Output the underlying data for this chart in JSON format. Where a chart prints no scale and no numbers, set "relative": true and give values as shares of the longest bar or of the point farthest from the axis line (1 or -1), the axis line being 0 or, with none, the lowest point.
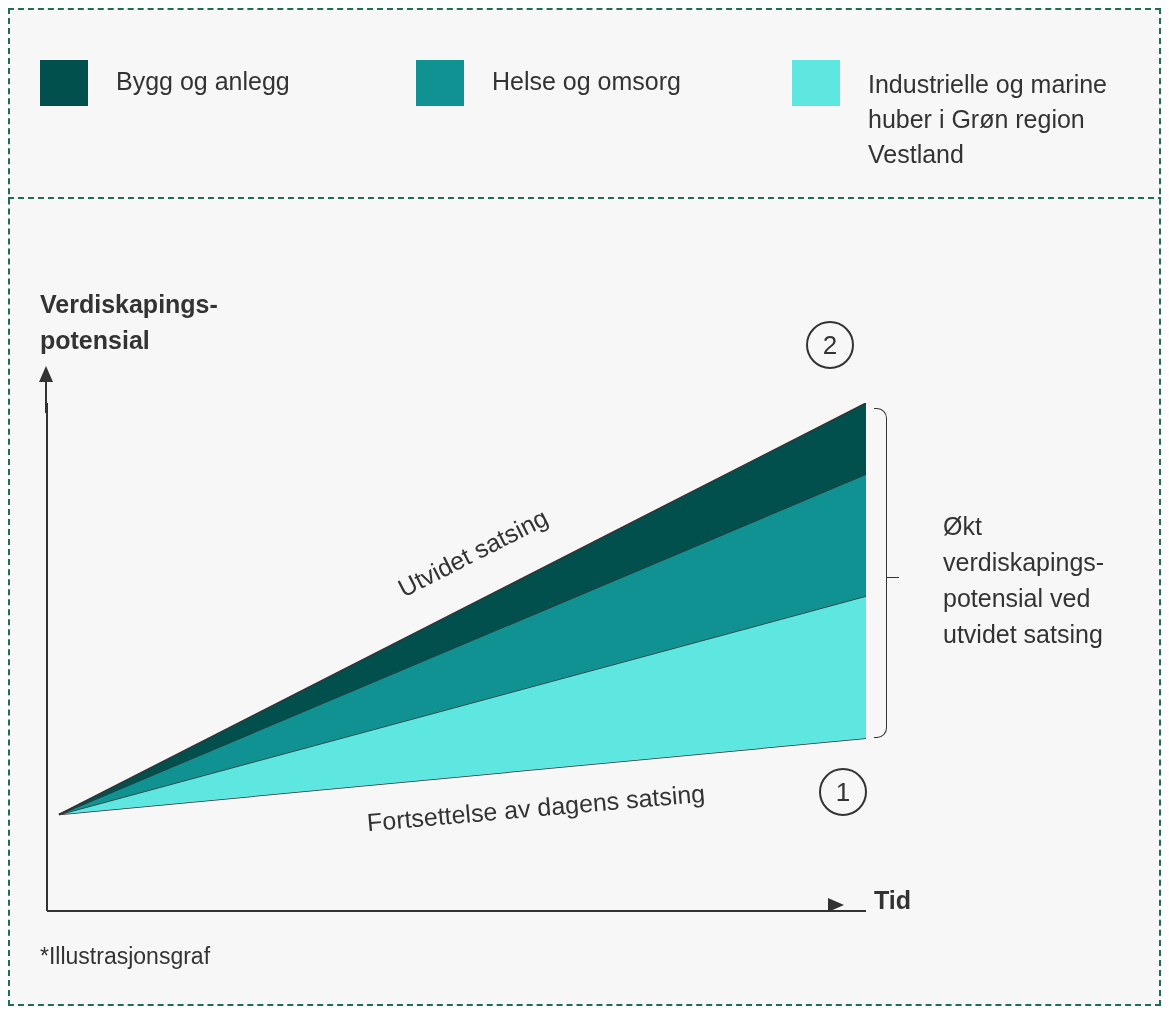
{
  "chart_data": {
    "type": "area",
    "stacked": true,
    "relative": true,
    "legend": "top",
    "xlabel": "Tid",
    "ylabel": "Verdiskapings-potensial",
    "categories": [
      null,
      null
    ],
    "series": [
      {
        "color": "#f7f7f7",
        "values": [
          0.19,
          0.34
        ]
      },
      {
        "name": "Industrielle og marine huber i Grøn region Vestland",
        "color": "#5ee6e0",
        "values": [
          0,
          0.28
        ]
      },
      {
        "name": "Helse og omsorg",
        "color": "#109292",
        "values": [
          0,
          0.24
        ]
      },
      {
        "name": "Bygg og anlegg",
        "color": "#02504d",
        "values": [
          0,
          0.14
        ]
      }
    ],
    "annotations": [
      "Utvidet satsing",
      "Fortsettelse av dagens satsing",
      "1",
      "2",
      "Økt verdiskapings-potensial ved utvidet satsing",
      "*Illustrasjonsgraf"
    ]
  }
}
